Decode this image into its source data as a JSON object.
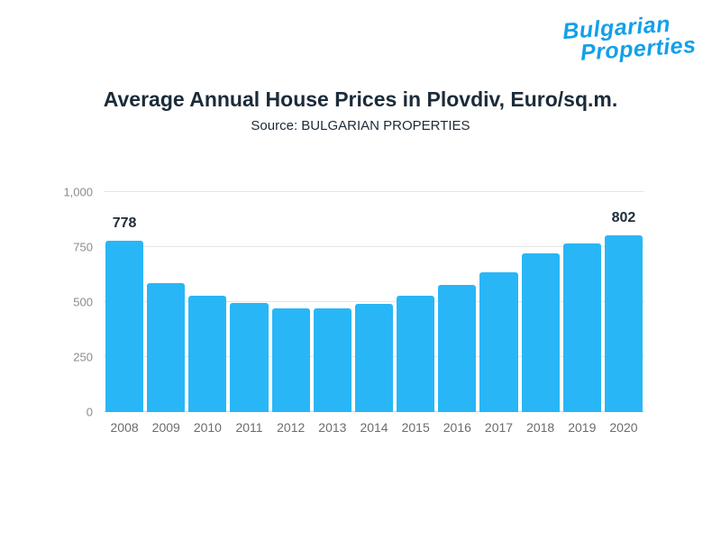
{
  "logo": {
    "line1": "Bulgarian",
    "line2": "Properties",
    "color": "#14a0e9"
  },
  "header": {
    "title": "Average Annual House Prices in Plovdiv, Euro/sq.m.",
    "subtitle": "Source: BULGARIAN PROPERTIES"
  },
  "chart_data": {
    "type": "bar",
    "title": "Average Annual House Prices in Plovdiv, Euro/sq.m.",
    "subtitle": "Source: BULGARIAN PROPERTIES",
    "categories": [
      "2008",
      "2009",
      "2010",
      "2011",
      "2012",
      "2013",
      "2014",
      "2015",
      "2016",
      "2017",
      "2018",
      "2019",
      "2020"
    ],
    "values": [
      778,
      588,
      528,
      495,
      473,
      470,
      492,
      530,
      576,
      637,
      722,
      768,
      802
    ],
    "labeled_bars": [
      0,
      12
    ],
    "data_labels": {
      "2008": "778",
      "2020": "802"
    },
    "xlabel": "",
    "ylabel": "",
    "ylim": [
      0,
      1000
    ],
    "yticks": [
      "0",
      "250",
      "500",
      "750",
      "1,000"
    ],
    "bar_color": "#29b6f6",
    "grid": true,
    "legend": false
  }
}
